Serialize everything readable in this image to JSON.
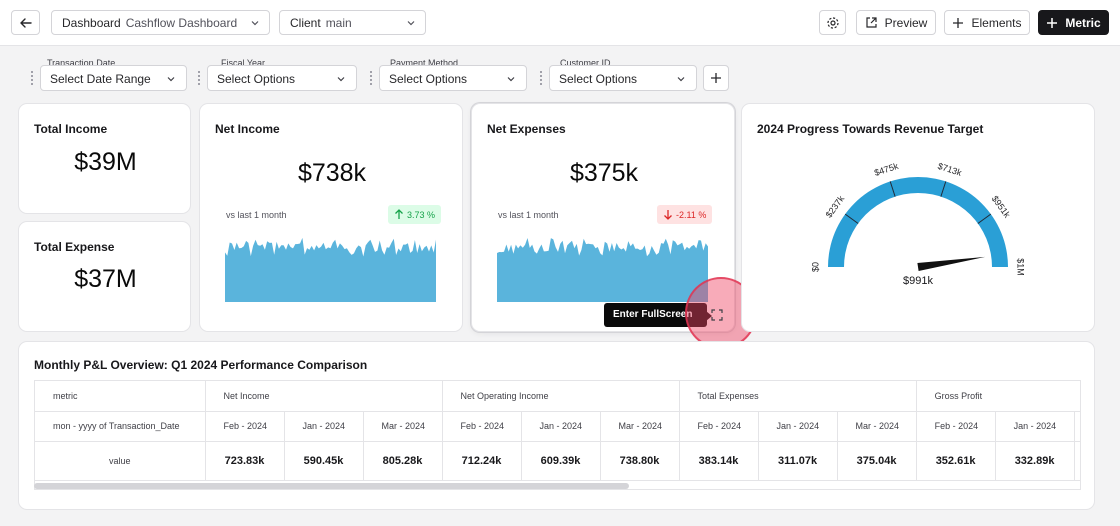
{
  "topbar": {
    "dashboard_label": "Dashboard",
    "dashboard_value": "Cashflow Dashboard",
    "client_label": "Client",
    "client_value": "main",
    "preview_label": "Preview",
    "elements_label": "Elements",
    "metric_label": "Metric"
  },
  "filters": [
    {
      "label": "Transaction Date",
      "value": "Select Date Range"
    },
    {
      "label": "Fiscal Year",
      "value": "Select Options"
    },
    {
      "label": "Payment Method",
      "value": "Select Options"
    },
    {
      "label": "Customer ID",
      "value": "Select Options"
    }
  ],
  "kpis": {
    "total_income": {
      "title": "Total Income",
      "value": "$39M"
    },
    "total_expense": {
      "title": "Total Expense",
      "value": "$37M"
    },
    "net_income": {
      "title": "Net Income",
      "value": "$738k",
      "comparison": "vs last 1 month",
      "change": "3.73 %",
      "direction": "up"
    },
    "net_expenses": {
      "title": "Net Expenses",
      "value": "$375k",
      "comparison": "vs last 1 month",
      "change": "-2.11 %",
      "direction": "down"
    }
  },
  "tooltip": {
    "text": "Enter FullScreen"
  },
  "gauge": {
    "title": "2024 Progress Towards Revenue Target",
    "ticks": [
      "$0",
      "$237k",
      "$475k",
      "$713k",
      "$951k",
      "$1M"
    ],
    "value_label": "$991k",
    "progress": 0.991,
    "arc_color": "#2a9fd6"
  },
  "table": {
    "title": "Monthly P&L Overview: Q1 2024 Performance Comparison",
    "row_header_metric": "metric",
    "row_header_period": "mon - yyyy of Transaction_Date",
    "row_header_value": "value",
    "groups": [
      {
        "name": "Net Income",
        "months": [
          "Feb - 2024",
          "Jan - 2024",
          "Mar - 2024"
        ],
        "values": [
          "723.83k",
          "590.45k",
          "805.28k"
        ]
      },
      {
        "name": "Net Operating Income",
        "months": [
          "Feb - 2024",
          "Jan - 2024",
          "Mar - 2024"
        ],
        "values": [
          "712.24k",
          "609.39k",
          "738.80k"
        ]
      },
      {
        "name": "Total Expenses",
        "months": [
          "Feb - 2024",
          "Jan - 2024",
          "Mar - 2024"
        ],
        "values": [
          "383.14k",
          "311.07k",
          "375.04k"
        ]
      },
      {
        "name": "Gross Profit",
        "months": [
          "Feb - 2024",
          "Jan - 2024"
        ],
        "values": [
          "352.61k",
          "332.89k"
        ]
      }
    ]
  },
  "colors": {
    "sparkline": "#5ab4dc",
    "accent_dark": "#18181b"
  }
}
